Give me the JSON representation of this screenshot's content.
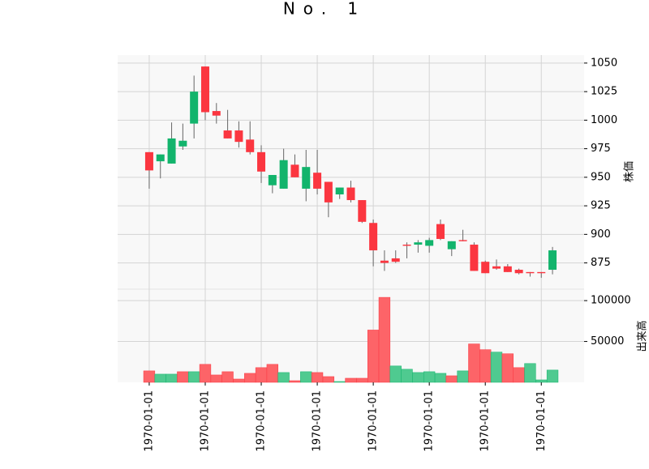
{
  "chart_data": {
    "type": "candlestick",
    "title": "No. 1",
    "categories": [
      "1970-01-01",
      null,
      null,
      null,
      null,
      "1970-01-01",
      null,
      null,
      null,
      null,
      "1970-01-01",
      null,
      null,
      null,
      null,
      "1970-01-01",
      null,
      null,
      null,
      null,
      "1970-01-01",
      null,
      null,
      null,
      null,
      "1970-01-01",
      null,
      null,
      null,
      null,
      "1970-01-01",
      null,
      null,
      null,
      null,
      "1970-01-01",
      null
    ],
    "open": [
      972,
      964,
      962,
      977,
      997,
      1047,
      1008,
      991,
      991,
      983,
      972,
      943,
      940,
      961,
      940,
      954,
      946,
      935,
      941,
      930,
      910,
      877,
      879,
      891,
      891,
      890,
      909,
      887,
      895,
      891,
      876,
      872,
      872,
      869,
      867,
      867,
      869
    ],
    "high": [
      972,
      970,
      998,
      997,
      1039,
      1047,
      1015,
      1009,
      999,
      999,
      978,
      952,
      975,
      970,
      974,
      974,
      946,
      941,
      947,
      930,
      913,
      886,
      886,
      893,
      895,
      897,
      913,
      894,
      904,
      893,
      877,
      878,
      874,
      870,
      867,
      867,
      889
    ],
    "low": [
      940,
      949,
      962,
      974,
      984,
      1000,
      997,
      984,
      976,
      970,
      945,
      936,
      940,
      950,
      929,
      935,
      915,
      931,
      928,
      910,
      872,
      868,
      875,
      879,
      884,
      884,
      895,
      881,
      894,
      868,
      866,
      869,
      867,
      865,
      863,
      862,
      865
    ],
    "close": [
      956,
      970,
      984,
      982,
      1025,
      1007,
      1004,
      984,
      981,
      972,
      955,
      952,
      965,
      950,
      959,
      940,
      928,
      941,
      930,
      911,
      886,
      875,
      876,
      890,
      893,
      895,
      896,
      894,
      894,
      868,
      866,
      870,
      867,
      866,
      866,
      866,
      886
    ],
    "volume": [
      14000,
      10000,
      10000,
      13000,
      13000,
      22000,
      9000,
      13000,
      4000,
      11000,
      18000,
      22000,
      12000,
      2000,
      13000,
      12000,
      7000,
      1000,
      5000,
      5000,
      64000,
      104000,
      20000,
      16000,
      12000,
      13000,
      11000,
      8000,
      14000,
      47000,
      40000,
      37000,
      35000,
      18000,
      23000,
      3000,
      15000
    ],
    "ylabel": "株価",
    "ylim": [
      852,
      1057
    ],
    "yticks": [
      875,
      900,
      925,
      950,
      975,
      1000,
      1025,
      1050
    ],
    "volume_ylabel": "出来高",
    "volume_ylim": [
      0,
      114000
    ],
    "volume_yticks": [
      50000,
      100000
    ],
    "up_color": "#12b46c",
    "down_color": "#fb3640",
    "volume_up_color": "#4fca90",
    "volume_down_color": "#fd6468",
    "wick_color": "#666666",
    "grid": true
  }
}
